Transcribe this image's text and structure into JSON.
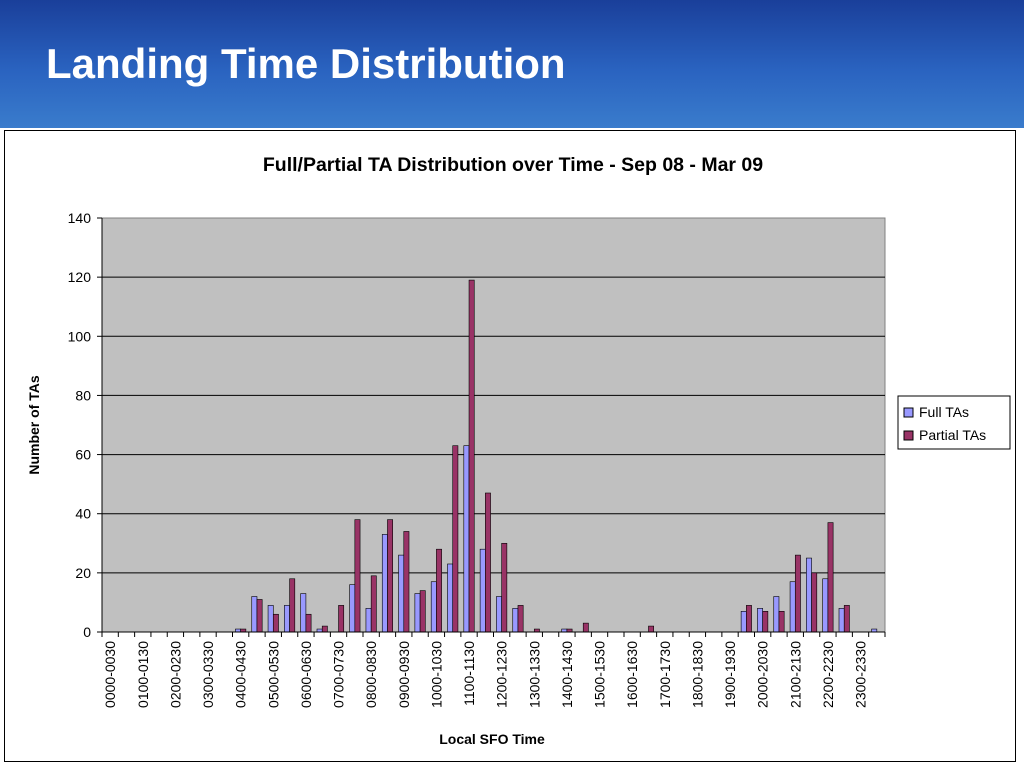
{
  "slide": {
    "title": "Landing Time Distribution"
  },
  "colors": {
    "header_top": "#1a3f9a",
    "header_bottom": "#3a7ccc",
    "plot_background": "#c0c0c0",
    "full_tas": "#9999ff",
    "partial_tas": "#993366"
  },
  "chart_data": {
    "type": "bar",
    "title": "Full/Partial TA Distribution over Time - Sep 08 - Mar 09",
    "xlabel": "Local SFO Time",
    "ylabel": "Number of TAs",
    "ylim": [
      0,
      140
    ],
    "yticks": [
      0,
      20,
      40,
      60,
      80,
      100,
      120,
      140
    ],
    "grid": true,
    "legend_position": "right",
    "categories": [
      "0000-0030",
      "0030-0100",
      "0100-0130",
      "0130-0200",
      "0200-0230",
      "0230-0300",
      "0300-0330",
      "0330-0400",
      "0400-0430",
      "0430-0500",
      "0500-0530",
      "0530-0600",
      "0600-0630",
      "0630-0700",
      "0700-0730",
      "0730-0800",
      "0800-0830",
      "0830-0900",
      "0900-0930",
      "0930-1000",
      "1000-1030",
      "1030-1100",
      "1100-1130",
      "1130-1200",
      "1200-1230",
      "1230-1300",
      "1300-1330",
      "1330-1400",
      "1400-1430",
      "1430-1500",
      "1500-1530",
      "1530-1600",
      "1600-1630",
      "1630-1700",
      "1700-1730",
      "1730-1800",
      "1800-1830",
      "1830-1900",
      "1900-1930",
      "1930-2000",
      "2000-2030",
      "2030-2100",
      "2100-2130",
      "2130-2200",
      "2200-2230",
      "2230-2300",
      "2300-2330",
      "2330-0000"
    ],
    "visible_tick_labels": [
      "0000-0030",
      "0100-0130",
      "0200-0230",
      "0300-0330",
      "0400-0430",
      "0500-0530",
      "0600-0630",
      "0700-0730",
      "0800-0830",
      "0900-0930",
      "1000-1030",
      "1100-1130",
      "1200-1230",
      "1300-1330",
      "1400-1430",
      "1500-1530",
      "1600-1630",
      "1700-1730",
      "1800-1830",
      "1900-1930",
      "2000-2030",
      "2100-2130",
      "2200-2230",
      "2300-2330"
    ],
    "series": [
      {
        "name": "Full TAs",
        "color": "#9999ff",
        "values": [
          0,
          0,
          0,
          0,
          0,
          0,
          0,
          0,
          1,
          12,
          9,
          9,
          13,
          1,
          0,
          16,
          8,
          33,
          26,
          13,
          17,
          23,
          63,
          28,
          12,
          8,
          0,
          0,
          1,
          0,
          0,
          0,
          0,
          0,
          0,
          0,
          0,
          0,
          0,
          7,
          8,
          12,
          17,
          25,
          18,
          8,
          0,
          1
        ]
      },
      {
        "name": "Partial TAs",
        "color": "#993366",
        "values": [
          0,
          0,
          0,
          0,
          0,
          0,
          0,
          0,
          1,
          11,
          6,
          18,
          6,
          2,
          9,
          38,
          19,
          38,
          34,
          14,
          28,
          63,
          119,
          47,
          30,
          9,
          1,
          0,
          1,
          3,
          0,
          0,
          0,
          2,
          0,
          0,
          0,
          0,
          0,
          9,
          7,
          7,
          26,
          20,
          37,
          9,
          0,
          0
        ]
      }
    ]
  }
}
